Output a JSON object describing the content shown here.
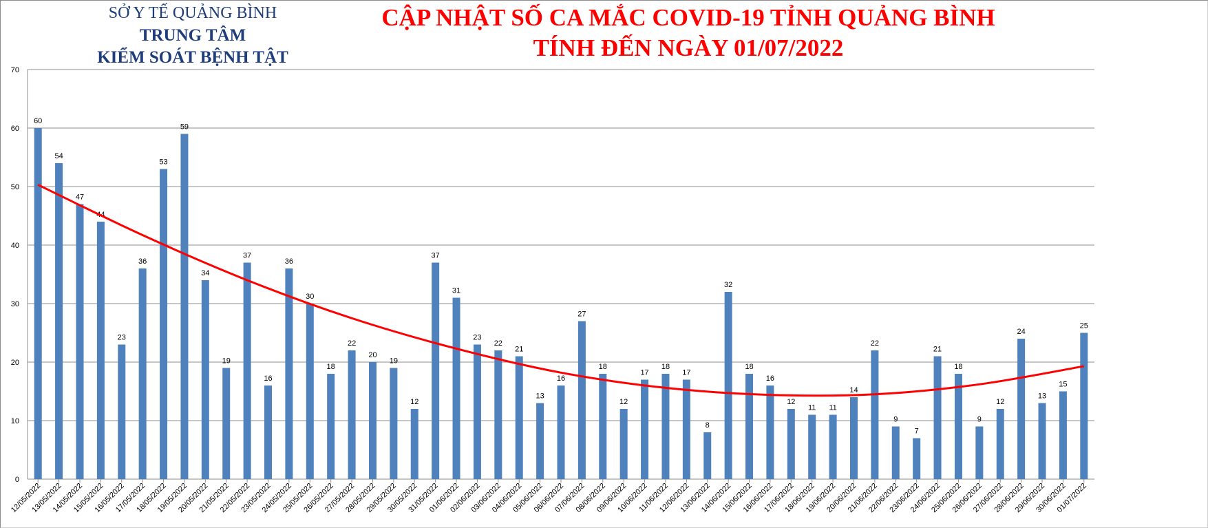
{
  "header": {
    "org_line1": "SỞ Y TẾ QUẢNG BÌNH",
    "org_line2": "TRUNG TÂM",
    "org_line3": "KIỂM SOÁT BỆNH TẬT",
    "title_line1": "CẬP NHẬT SỐ CA MẮC COVID-19 TỈNH QUẢNG BÌNH",
    "title_line2": "TÍNH ĐẾN NGÀY 01/07/2022"
  },
  "colors": {
    "bar": "#4f81bd",
    "trendline": "#ff0000",
    "org_text": "#1f3d7a",
    "title_text": "#ff0000",
    "grid": "#8c8c8c"
  },
  "chart_data": {
    "type": "bar",
    "title": "CẬP NHẬT SỐ CA MẮC COVID-19 TỈNH QUẢNG BÌNH TÍNH ĐẾN NGÀY 01/07/2022",
    "xlabel": "",
    "ylabel": "",
    "ylim": [
      0,
      70
    ],
    "yticks": [
      0,
      10,
      20,
      30,
      40,
      50,
      60,
      70
    ],
    "grid": true,
    "legend": "none",
    "categories": [
      "12/05/2022",
      "13/05/2022",
      "14/05/2022",
      "15/05/2022",
      "16/05/2022",
      "17/05/2022",
      "18/05/2022",
      "19/05/2022",
      "20/05/2022",
      "21/05/2022",
      "22/05/2022",
      "23/05/2022",
      "24/05/2022",
      "25/05/2022",
      "26/05/2022",
      "27/05/2022",
      "28/05/2022",
      "29/05/2022",
      "30/05/2022",
      "31/05/2022",
      "01/06/2022",
      "02/06/2022",
      "03/06/2022",
      "04/06/2022",
      "05/06/2022",
      "06/06/2022",
      "07/06/2022",
      "08/06/2022",
      "09/06/2022",
      "10/06/2022",
      "11/06/2022",
      "12/06/2022",
      "13/06/2022",
      "14/06/2022",
      "15/06/2022",
      "16/06/2022",
      "17/06/2022",
      "18/06/2022",
      "19/06/2022",
      "20/06/2022",
      "21/06/2022",
      "22/06/2022",
      "23/06/2022",
      "24/06/2022",
      "25/06/2022",
      "26/06/2022",
      "27/06/2022",
      "28/06/2022",
      "29/06/2022",
      "30/06/2022",
      "01/07/2022"
    ],
    "values": [
      60,
      54,
      47,
      44,
      23,
      36,
      53,
      59,
      34,
      19,
      37,
      16,
      36,
      30,
      18,
      22,
      20,
      19,
      12,
      37,
      31,
      23,
      22,
      21,
      13,
      16,
      27,
      18,
      12,
      17,
      18,
      17,
      8,
      32,
      18,
      16,
      12,
      11,
      11,
      14,
      22,
      9,
      7,
      21,
      18,
      9,
      12,
      24,
      13,
      15,
      25
    ],
    "trendline": {
      "type": "polynomial",
      "x_index": [
        0,
        5,
        10,
        15,
        20,
        25,
        30,
        35,
        40,
        45,
        50
      ],
      "y": [
        50.3,
        41.7,
        34.0,
        27.5,
        22.3,
        18.2,
        15.6,
        14.4,
        14.5,
        16.2,
        19.3
      ]
    }
  }
}
